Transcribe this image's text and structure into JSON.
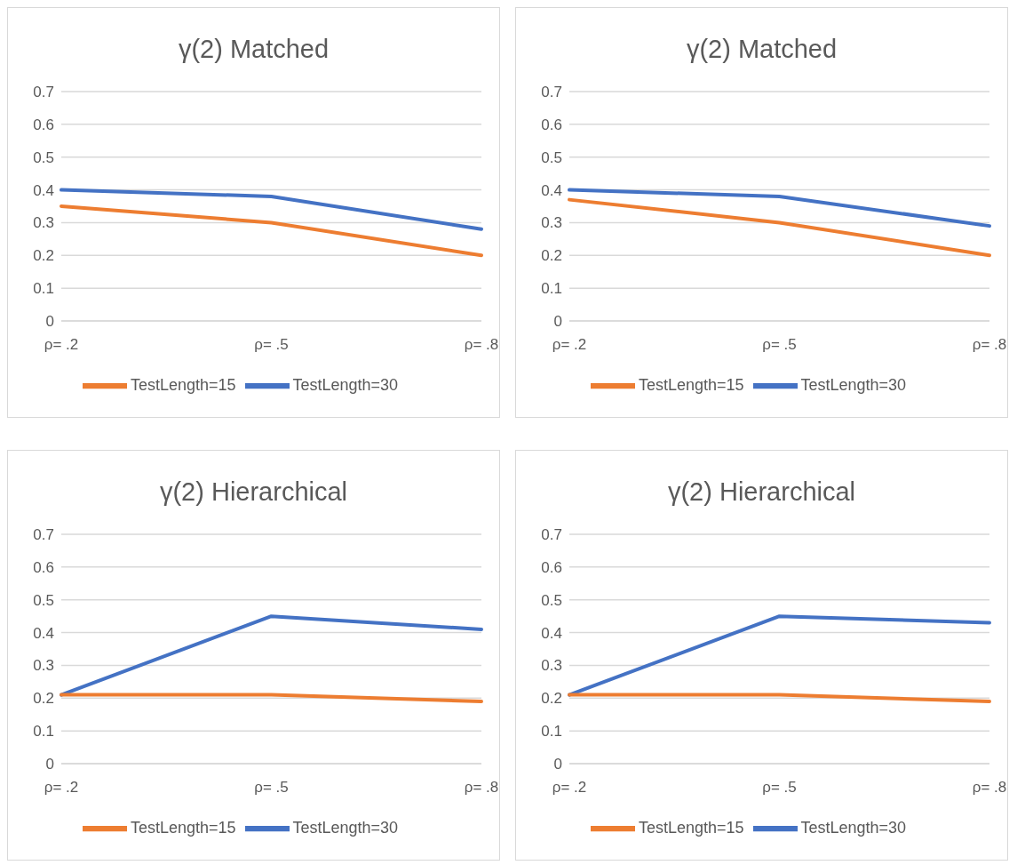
{
  "chart_data": [
    {
      "type": "line",
      "title": "γ(2) Matched",
      "categories": [
        "ρ= .2",
        "ρ= .5",
        "ρ= .8"
      ],
      "series": [
        {
          "name": "TestLength=30",
          "color": "#4472c4",
          "values": [
            0.4,
            0.38,
            0.28
          ]
        },
        {
          "name": "TestLength=15",
          "color": "#ed7d31",
          "values": [
            0.35,
            0.3,
            0.2
          ]
        }
      ],
      "ylim": [
        0,
        0.7
      ],
      "yticks": [
        0,
        0.1,
        0.2,
        0.3,
        0.4,
        0.5,
        0.6,
        0.7
      ],
      "grid": "y",
      "legend": "bottom",
      "marker": "none",
      "line_style": "solid"
    },
    {
      "type": "line",
      "title": "γ(2) Matched",
      "categories": [
        "ρ= .2",
        "ρ= .5",
        "ρ= .8"
      ],
      "series": [
        {
          "name": "TestLength=30",
          "color": "#4472c4",
          "values": [
            0.4,
            0.38,
            0.29
          ]
        },
        {
          "name": "TestLength=15",
          "color": "#ed7d31",
          "values": [
            0.37,
            0.3,
            0.2
          ]
        }
      ],
      "ylim": [
        0,
        0.7
      ],
      "yticks": [
        0,
        0.1,
        0.2,
        0.3,
        0.4,
        0.5,
        0.6,
        0.7
      ],
      "grid": "y",
      "legend": "bottom",
      "marker": "none",
      "line_style": "solid"
    },
    {
      "type": "line",
      "title": "γ(2) Hierarchical",
      "categories": [
        "ρ= .2",
        "ρ= .5",
        "ρ= .8"
      ],
      "series": [
        {
          "name": "TestLength=30",
          "color": "#4472c4",
          "values": [
            0.21,
            0.45,
            0.41
          ]
        },
        {
          "name": "TestLength=15",
          "color": "#ed7d31",
          "values": [
            0.21,
            0.21,
            0.19
          ]
        }
      ],
      "ylim": [
        0,
        0.7
      ],
      "yticks": [
        0,
        0.1,
        0.2,
        0.3,
        0.4,
        0.5,
        0.6,
        0.7
      ],
      "grid": "y",
      "legend": "bottom",
      "marker": "none",
      "line_style": "solid"
    },
    {
      "type": "line",
      "title": "γ(2) Hierarchical",
      "categories": [
        "ρ= .2",
        "ρ= .5",
        "ρ= .8"
      ],
      "series": [
        {
          "name": "TestLength=30",
          "color": "#4472c4",
          "values": [
            0.21,
            0.45,
            0.43
          ]
        },
        {
          "name": "TestLength=15",
          "color": "#ed7d31",
          "values": [
            0.21,
            0.21,
            0.19
          ]
        }
      ],
      "ylim": [
        0,
        0.7
      ],
      "yticks": [
        0,
        0.1,
        0.2,
        0.3,
        0.4,
        0.5,
        0.6,
        0.7
      ],
      "grid": "y",
      "legend": "bottom",
      "marker": "none",
      "line_style": "solid"
    }
  ]
}
